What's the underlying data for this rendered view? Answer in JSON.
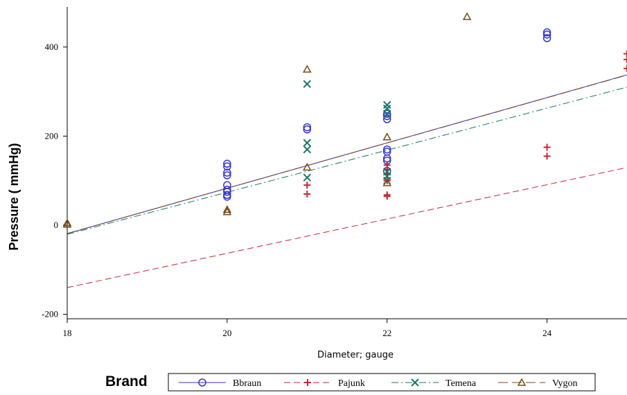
{
  "chart_data": {
    "type": "scatter",
    "xlabel": "Diameter; gauge",
    "ylabel": "Pressure ( mmHg)",
    "xlim": [
      18,
      25
    ],
    "ylim": [
      -210,
      490
    ],
    "x_ticks": [
      18,
      20,
      22,
      24
    ],
    "y_ticks": [
      -200,
      0,
      200,
      400
    ],
    "legend_title": "Brand",
    "legend_position": "bottom",
    "grid": false,
    "series": [
      {
        "name": "Bbraun",
        "color": "#3333dd",
        "marker": "circle",
        "line_style": "solid",
        "fit": {
          "intercept": -935,
          "slope": 50.9
        },
        "x": [
          20,
          20,
          20,
          20,
          20,
          20,
          20,
          20,
          20,
          21,
          21,
          22,
          22,
          22,
          22,
          22,
          22,
          22,
          22,
          24,
          24,
          24
        ],
        "y": [
          138,
          132,
          118,
          112,
          90,
          80,
          75,
          68,
          64,
          220,
          215,
          250,
          245,
          238,
          170,
          165,
          150,
          145,
          122,
          433,
          428,
          420
        ]
      },
      {
        "name": "Pajunk",
        "color": "#cc2233",
        "marker": "plus",
        "line_style": "dashed",
        "fit": {
          "intercept": -833,
          "slope": 38.5
        },
        "x": [
          21,
          21,
          22,
          22,
          22,
          22,
          22,
          22,
          24,
          24,
          25,
          25,
          25
        ],
        "y": [
          90,
          70,
          135,
          125,
          115,
          100,
          68,
          65,
          175,
          155,
          385,
          372,
          352
        ]
      },
      {
        "name": "Temena",
        "color": "#117766",
        "marker": "x",
        "line_style": "dashdot",
        "fit": {
          "intercept": -870,
          "slope": 47.2
        },
        "x": [
          21,
          21,
          21,
          21,
          22,
          22,
          22,
          22,
          22,
          22
        ],
        "y": [
          317,
          185,
          170,
          107,
          270,
          262,
          250,
          120,
          110,
          100
        ]
      },
      {
        "name": "Vygon",
        "color": "#7a4a10",
        "marker": "triangle",
        "line_style": "longdash",
        "fit": {
          "intercept": -933,
          "slope": 50.8
        },
        "x": [
          18,
          18,
          20,
          20,
          21,
          21,
          22,
          22,
          23
        ],
        "y": [
          5,
          2,
          35,
          30,
          350,
          130,
          198,
          95,
          468
        ]
      }
    ]
  }
}
